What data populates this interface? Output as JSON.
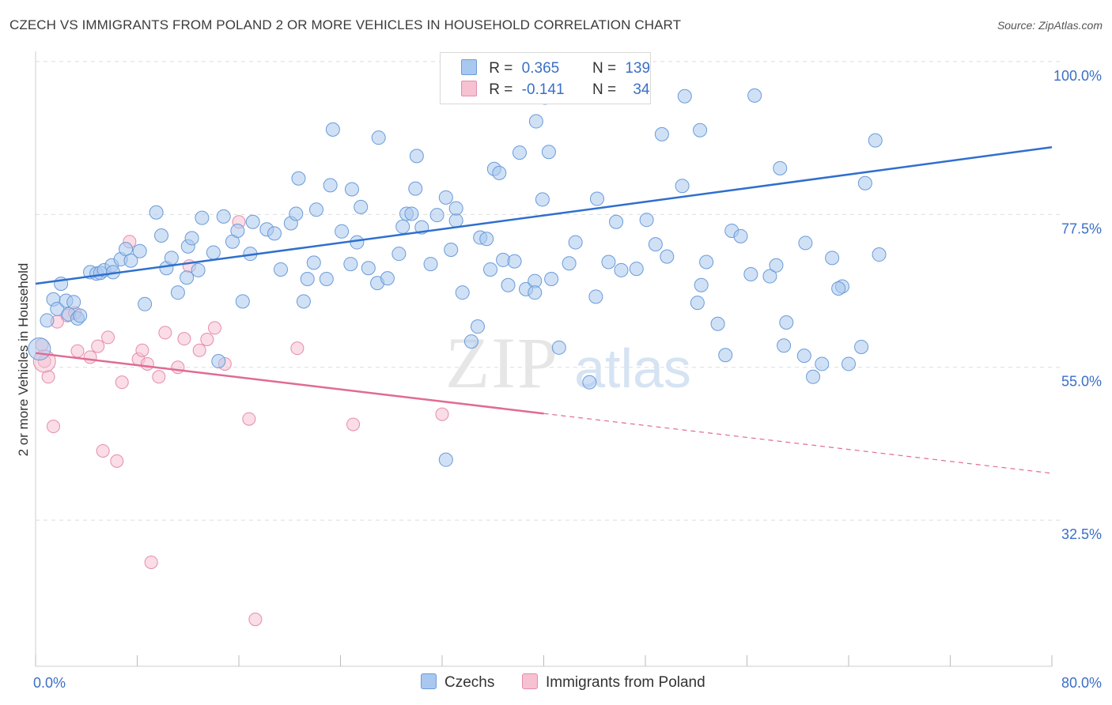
{
  "header": {
    "title": "CZECH VS IMMIGRANTS FROM POLAND 2 OR MORE VEHICLES IN HOUSEHOLD CORRELATION CHART",
    "source": "Source: ZipAtlas.com"
  },
  "watermark": {
    "zip": "ZIP",
    "atlas": "atlas"
  },
  "legend_top": {
    "rows": [
      {
        "r_label": "R =",
        "r_value": "0.365",
        "n_label": "N =",
        "n_value": "139"
      },
      {
        "r_label": "R =",
        "r_value": "-0.141",
        "n_label": "N =",
        "n_value": "34"
      }
    ]
  },
  "legend_bottom": {
    "series1": "Czechs",
    "series2": "Immigrants from Poland"
  },
  "colors": {
    "czech_fill": "#a9c8ef",
    "czech_stroke": "#6a9bd8",
    "czech_line": "#2f6fce",
    "poland_fill": "#f6c1d1",
    "poland_stroke": "#e58cab",
    "poland_line": "#e06b94",
    "axis_label": "#3a6fc7",
    "grid": "#dddddd"
  },
  "chart_data": {
    "type": "scatter",
    "title": "CZECH VS IMMIGRANTS FROM POLAND 2 OR MORE VEHICLES IN HOUSEHOLD CORRELATION CHART",
    "xlabel": "",
    "ylabel": "2 or more Vehicles in Household",
    "xlim": [
      0,
      80
    ],
    "ylim": [
      11.0,
      101.5
    ],
    "x_tick_labels": [
      "0.0%",
      "80.0%"
    ],
    "y_ticks": [
      32.5,
      55.0,
      77.5,
      100.0
    ],
    "y_tick_labels": [
      "32.5%",
      "55.0%",
      "77.5%",
      "100.0%"
    ],
    "grid": true,
    "series": [
      {
        "name": "Czechs",
        "r": 0.365,
        "n": 139,
        "trend": {
          "x": [
            0,
            80
          ],
          "y": [
            67.3,
            87.4
          ]
        },
        "points": [
          [
            0.3,
            57.7
          ],
          [
            0.9,
            61.9
          ],
          [
            1.4,
            65.0
          ],
          [
            1.7,
            63.6
          ],
          [
            2.0,
            67.3
          ],
          [
            2.4,
            64.8
          ],
          [
            2.6,
            62.8
          ],
          [
            3.0,
            64.6
          ],
          [
            3.3,
            62.2
          ],
          [
            3.5,
            62.6
          ],
          [
            4.3,
            69.0
          ],
          [
            4.8,
            68.8
          ],
          [
            5.1,
            68.9
          ],
          [
            5.4,
            69.3
          ],
          [
            6.0,
            70.0
          ],
          [
            6.7,
            70.9
          ],
          [
            6.1,
            69.0
          ],
          [
            7.1,
            72.4
          ],
          [
            7.5,
            70.7
          ],
          [
            8.2,
            72.1
          ],
          [
            8.6,
            64.3
          ],
          [
            9.5,
            77.8
          ],
          [
            9.9,
            74.4
          ],
          [
            10.3,
            69.6
          ],
          [
            10.7,
            71.1
          ],
          [
            11.2,
            66.0
          ],
          [
            11.9,
            68.2
          ],
          [
            12.0,
            72.8
          ],
          [
            12.3,
            74.0
          ],
          [
            12.8,
            69.3
          ],
          [
            13.1,
            77.0
          ],
          [
            14.0,
            71.9
          ],
          [
            14.4,
            55.9
          ],
          [
            14.8,
            77.2
          ],
          [
            15.5,
            73.5
          ],
          [
            15.9,
            75.1
          ],
          [
            16.3,
            64.7
          ],
          [
            16.9,
            71.7
          ],
          [
            17.1,
            76.4
          ],
          [
            18.2,
            75.3
          ],
          [
            18.8,
            74.7
          ],
          [
            19.3,
            69.4
          ],
          [
            20.1,
            76.2
          ],
          [
            20.5,
            77.6
          ],
          [
            20.7,
            82.8
          ],
          [
            21.1,
            64.7
          ],
          [
            21.4,
            68.0
          ],
          [
            21.9,
            70.4
          ],
          [
            22.1,
            78.2
          ],
          [
            22.9,
            68.0
          ],
          [
            23.2,
            81.8
          ],
          [
            23.4,
            90.0
          ],
          [
            24.1,
            75.0
          ],
          [
            24.8,
            70.2
          ],
          [
            24.9,
            81.2
          ],
          [
            25.3,
            73.4
          ],
          [
            25.6,
            78.6
          ],
          [
            26.2,
            69.6
          ],
          [
            26.9,
            67.4
          ],
          [
            27.0,
            88.8
          ],
          [
            27.7,
            68.1
          ],
          [
            28.6,
            71.7
          ],
          [
            28.9,
            75.7
          ],
          [
            29.2,
            77.6
          ],
          [
            29.6,
            77.6
          ],
          [
            29.9,
            81.3
          ],
          [
            30.0,
            86.1
          ],
          [
            30.4,
            75.6
          ],
          [
            31.1,
            70.2
          ],
          [
            31.6,
            77.4
          ],
          [
            32.3,
            80.0
          ],
          [
            32.7,
            72.3
          ],
          [
            32.3,
            41.4
          ],
          [
            33.1,
            76.6
          ],
          [
            33.1,
            78.4
          ],
          [
            33.6,
            66.0
          ],
          [
            34.3,
            58.8
          ],
          [
            34.8,
            61.0
          ],
          [
            35.0,
            74.1
          ],
          [
            35.5,
            73.9
          ],
          [
            35.8,
            69.4
          ],
          [
            36.1,
            84.2
          ],
          [
            36.5,
            83.6
          ],
          [
            36.8,
            70.8
          ],
          [
            37.2,
            67.1
          ],
          [
            37.7,
            70.6
          ],
          [
            38.1,
            86.6
          ],
          [
            38.6,
            66.5
          ],
          [
            39.4,
            91.2
          ],
          [
            39.3,
            67.7
          ],
          [
            39.9,
            79.7
          ],
          [
            40.6,
            68.0
          ],
          [
            40.1,
            94.7
          ],
          [
            40.4,
            86.7
          ],
          [
            41.2,
            57.9
          ],
          [
            42.0,
            70.3
          ],
          [
            42.5,
            73.4
          ],
          [
            43.6,
            52.8
          ],
          [
            44.1,
            65.4
          ],
          [
            44.2,
            79.8
          ],
          [
            45.1,
            70.5
          ],
          [
            45.7,
            76.4
          ],
          [
            46.1,
            69.3
          ],
          [
            47.3,
            69.5
          ],
          [
            48.1,
            76.7
          ],
          [
            48.8,
            73.1
          ],
          [
            49.3,
            89.3
          ],
          [
            49.7,
            71.3
          ],
          [
            50.9,
            81.7
          ],
          [
            51.1,
            94.9
          ],
          [
            52.1,
            64.5
          ],
          [
            52.4,
            67.1
          ],
          [
            52.8,
            70.5
          ],
          [
            53.7,
            61.4
          ],
          [
            54.3,
            56.8
          ],
          [
            54.8,
            75.1
          ],
          [
            55.5,
            74.3
          ],
          [
            56.3,
            68.7
          ],
          [
            57.8,
            68.4
          ],
          [
            58.3,
            70.0
          ],
          [
            58.6,
            84.3
          ],
          [
            58.9,
            58.2
          ],
          [
            59.1,
            61.6
          ],
          [
            60.5,
            56.7
          ],
          [
            61.2,
            53.6
          ],
          [
            61.9,
            55.5
          ],
          [
            62.7,
            71.1
          ],
          [
            63.5,
            66.9
          ],
          [
            64.0,
            55.5
          ],
          [
            65.3,
            82.1
          ],
          [
            66.1,
            88.4
          ],
          [
            66.4,
            71.6
          ],
          [
            60.6,
            73.3
          ],
          [
            63.2,
            66.6
          ],
          [
            65.0,
            58.0
          ],
          [
            52.3,
            89.9
          ],
          [
            39.3,
            66.0
          ],
          [
            56.6,
            95.0
          ]
        ]
      },
      {
        "name": "Immigrants from Poland",
        "r": -0.141,
        "n": 34,
        "trend": {
          "x": [
            0,
            40
          ],
          "y": [
            57.1,
            48.2
          ]
        },
        "trend_dashed": {
          "x": [
            40,
            80
          ],
          "y": [
            48.2,
            39.4
          ]
        },
        "points": [
          [
            0.5,
            58.3
          ],
          [
            0.7,
            55.9
          ],
          [
            1.0,
            53.6
          ],
          [
            1.4,
            46.3
          ],
          [
            1.7,
            61.7
          ],
          [
            2.5,
            62.6
          ],
          [
            3.1,
            63.0
          ],
          [
            3.3,
            57.4
          ],
          [
            4.3,
            56.5
          ],
          [
            4.9,
            58.1
          ],
          [
            5.3,
            42.7
          ],
          [
            5.7,
            59.4
          ],
          [
            6.4,
            41.2
          ],
          [
            6.8,
            52.8
          ],
          [
            7.4,
            73.5
          ],
          [
            8.1,
            56.2
          ],
          [
            8.4,
            57.5
          ],
          [
            8.8,
            55.5
          ],
          [
            9.1,
            26.3
          ],
          [
            9.7,
            53.6
          ],
          [
            10.2,
            60.1
          ],
          [
            11.2,
            55.0
          ],
          [
            11.7,
            59.2
          ],
          [
            12.1,
            69.9
          ],
          [
            12.9,
            57.5
          ],
          [
            13.5,
            59.1
          ],
          [
            14.1,
            60.8
          ],
          [
            14.9,
            55.5
          ],
          [
            16.0,
            76.4
          ],
          [
            16.8,
            47.4
          ],
          [
            17.3,
            17.9
          ],
          [
            20.6,
            57.8
          ],
          [
            25.0,
            46.6
          ],
          [
            32.0,
            48.1
          ]
        ]
      }
    ]
  }
}
